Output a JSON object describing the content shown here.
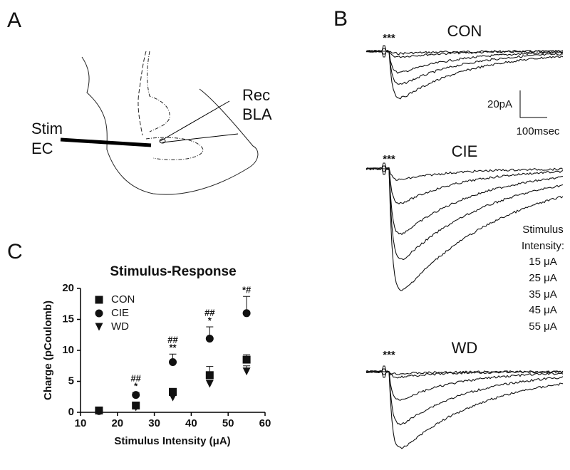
{
  "panels": {
    "a": {
      "label": "A",
      "rec": "Rec",
      "bla": "BLA",
      "stim": "Stim",
      "ec": "EC"
    },
    "b": {
      "label": "B",
      "traces": [
        {
          "title": "CON",
          "marker": "***"
        },
        {
          "title": "CIE",
          "marker": "***"
        },
        {
          "title": "WD",
          "marker": "***"
        }
      ],
      "scale_y": "20pA",
      "scale_x": "100msec",
      "legend_title": [
        "Stimulus",
        "Intensity:"
      ],
      "intensities": [
        "15 μA",
        "25 μA",
        "35 μA",
        "45 μA",
        "55 μA"
      ]
    },
    "c": {
      "label": "C"
    }
  },
  "chart_data": {
    "type": "scatter",
    "title": "Stimulus-Response",
    "x_label": "Stimulus Intensity (μA)",
    "y_label": "Charge (pCoulomb)",
    "x": [
      15,
      25,
      35,
      45,
      55
    ],
    "series": [
      {
        "name": "CON",
        "color": "#111111",
        "marker": "square",
        "values": [
          0.3,
          1.1,
          3.3,
          6.0,
          8.5
        ],
        "errors": [
          0.1,
          0.3,
          0.4,
          1.4,
          0.8
        ]
      },
      {
        "name": "CIE",
        "color": "#111111",
        "marker": "circle",
        "values": [
          0.2,
          2.8,
          8.1,
          11.9,
          16.0
        ],
        "errors": [
          0.1,
          0.4,
          1.3,
          1.9,
          2.7
        ]
      },
      {
        "name": "WD",
        "color": "#111111",
        "marker": "triangle-down",
        "values": [
          0.2,
          0.8,
          2.4,
          4.6,
          6.6
        ],
        "errors": [
          0.1,
          0.2,
          0.3,
          0.6,
          0.9
        ]
      }
    ],
    "annotations": [
      {
        "x": 25,
        "lines": [
          "##",
          "*"
        ]
      },
      {
        "x": 35,
        "lines": [
          "##",
          "**"
        ]
      },
      {
        "x": 45,
        "lines": [
          "##",
          "*"
        ]
      },
      {
        "x": 55,
        "lines": [
          "*#"
        ]
      }
    ],
    "xlim": [
      10,
      60
    ],
    "xticks": [
      10,
      20,
      30,
      40,
      50,
      60
    ],
    "ylim": [
      0,
      20
    ],
    "yticks": [
      0,
      5,
      10,
      15,
      20
    ]
  }
}
